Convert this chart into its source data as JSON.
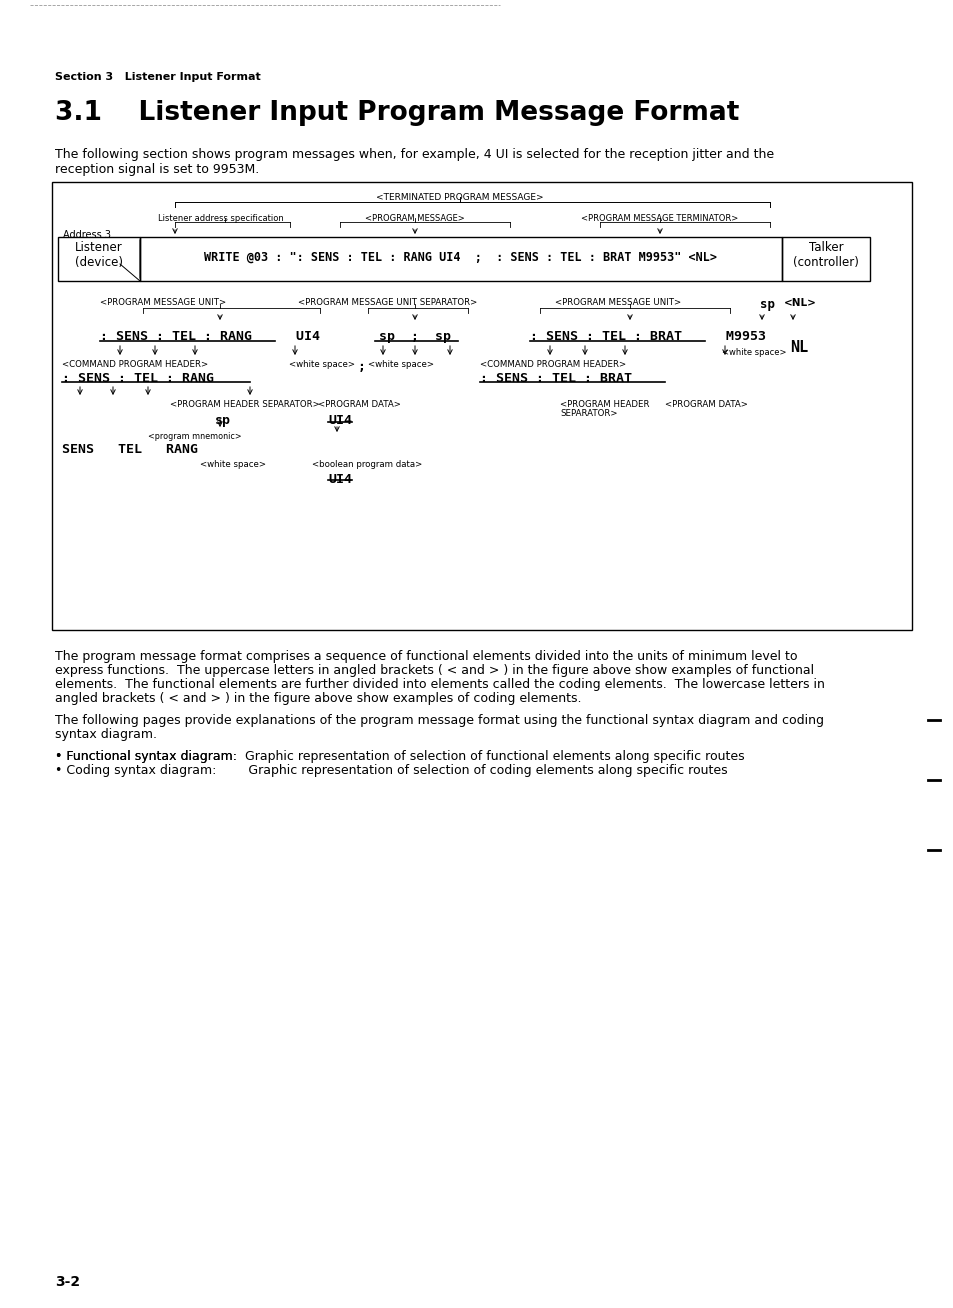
{
  "page_background": "#ffffff",
  "section_label": "Section 3   Listener Input Format",
  "title": "3.1    Listener Input Program Message Format",
  "intro_text1": "The following section shows program messages when, for example, 4 UI is selected for the reception jitter and the",
  "intro_text2": "reception signal is set to 9953M.",
  "body_text1_lines": [
    "The program message format comprises a sequence of functional elements divided into the units of minimum level to",
    "express functions.  The uppercase letters in angled brackets ( < and > ) in the figure above show examples of functional",
    "elements.  The functional elements are further divided into elements called the coding elements.  The lowercase letters in",
    "angled brackets ( < and > ) in the figure above show examples of coding elements."
  ],
  "body_text2_lines": [
    "The following pages provide explanations of the program message format using the functional syntax diagram and coding",
    "syntax diagram."
  ],
  "bullet1_label": "• Functional syntax diagram:",
  "bullet1_text": "  Graphic representation of selection of functional elements along specific routes",
  "bullet2_label": "• Coding syntax diagram:",
  "bullet2_text": "        Graphic representation of selection of coding elements along specific routes",
  "page_number": "3-2"
}
